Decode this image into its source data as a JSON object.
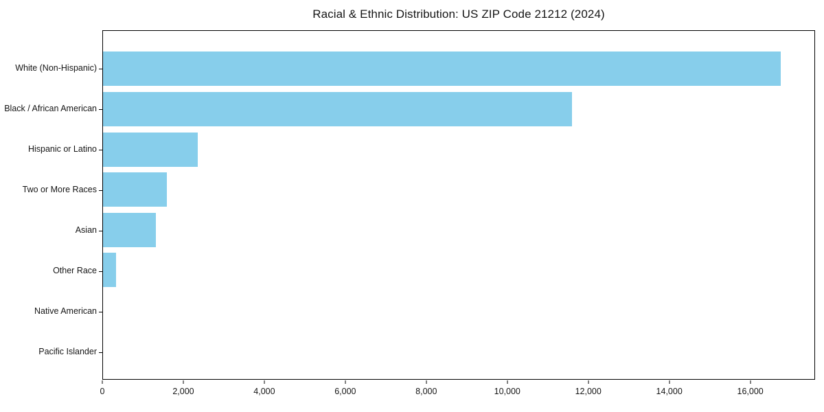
{
  "title": "Racial & Ethnic Distribution: US ZIP Code 21212 (2024)",
  "colors": {
    "bar": "#87CEEB",
    "axis": "#000000",
    "background": "#FFFFFF",
    "text": "#151515"
  },
  "chart_data": {
    "type": "bar",
    "orientation": "horizontal",
    "title": "Racial & Ethnic Distribution: US ZIP Code 21212 (2024)",
    "categories": [
      "White (Non-Hispanic)",
      "Black / African American",
      "Hispanic or Latino",
      "Two or More Races",
      "Asian",
      "Other Race",
      "Native American",
      "Pacific Islander"
    ],
    "values": [
      16760,
      11610,
      2350,
      1580,
      1300,
      320,
      0,
      0
    ],
    "xlabel": "",
    "ylabel": "",
    "xlim": [
      0,
      17600
    ],
    "xticks": [
      0,
      2000,
      4000,
      6000,
      8000,
      10000,
      12000,
      14000,
      16000
    ],
    "xtick_labels": [
      "0",
      "2,000",
      "4,000",
      "6,000",
      "8,000",
      "10,000",
      "12,000",
      "14,000",
      "16,000"
    ],
    "grid": false,
    "legend": false,
    "bar_color": "#87CEEB"
  }
}
